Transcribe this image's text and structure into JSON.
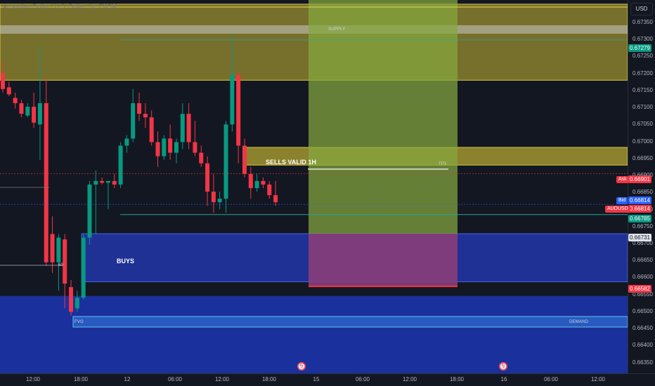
{
  "header": {
    "symbol_title": "Australian Dollar / U.S. Dollar, 1h, FXCM"
  },
  "price_axis": {
    "currency": "USD",
    "ticks": [
      "0.67350",
      "0.67300",
      "0.67250",
      "0.67200",
      "0.67150",
      "0.67100",
      "0.67050",
      "0.67000",
      "0.66950",
      "0.66900",
      "0.66850",
      "0.66800",
      "0.66750",
      "0.66700",
      "0.66650",
      "0.66600",
      "0.66550",
      "0.66500",
      "0.66450",
      "0.66400",
      "0.66350"
    ],
    "tags": {
      "supply_level": "0.67279",
      "ask_label": "Ask",
      "ask_value": "0.66901",
      "bid_label": "Bid",
      "bid_value": "0.66814",
      "symbol_label": "AUDUSD",
      "symbol_value": "0.66814",
      "tp_level": "0.66785",
      "buys_top": "0.66731",
      "stop_level": "0.66582"
    }
  },
  "time_axis": {
    "ticks": [
      "12:00",
      "18:00",
      "12",
      "06:00",
      "12:00",
      "18:00",
      "15",
      "06:00",
      "12:00",
      "18:00",
      "16",
      "06:00",
      "12:00"
    ]
  },
  "annotations": {
    "supply_zone": "SUPPLY",
    "sells_valid": "SELLS VALID 1H",
    "tp1": "TP1",
    "buys": "BUYS",
    "fvg": "FVG",
    "demand": "DEMAND",
    "sixty": "60"
  },
  "colors": {
    "bull": "#089981",
    "bear": "#f23645",
    "supply": "#b5a632",
    "buys_zone": "#2236a6",
    "demand_zone": "#1b33a8",
    "target_box": "#85a83e",
    "stop_box": "#8a3e7a",
    "ask": "#f23645",
    "bid": "#2962ff"
  },
  "event_icons": [
    "lightning-icon",
    "lightning-icon"
  ],
  "chart_data": {
    "type": "candlestick",
    "symbol": "AUDUSD",
    "timeframe": "1h",
    "ylim": [
      0.6634,
      0.6738
    ],
    "levels": {
      "ask": 0.66901,
      "bid": 0.66814,
      "tp1": 0.66785,
      "supply_line": 0.67279,
      "buys_top": 0.66731,
      "stop": 0.66582
    },
    "zones": [
      {
        "name": "supply",
        "from": 0.67165,
        "to": 0.6738
      },
      {
        "name": "sells_valid_1h",
        "from": 0.66925,
        "to": 0.66975
      },
      {
        "name": "buys",
        "from": 0.66595,
        "to": 0.66731
      },
      {
        "name": "demand",
        "from": 0.6635,
        "to": 0.66555
      }
    ],
    "candles": [
      {
        "o": 0.67185,
        "h": 0.67215,
        "l": 0.6713,
        "c": 0.6714
      },
      {
        "o": 0.67145,
        "h": 0.6716,
        "l": 0.6712,
        "c": 0.67125
      },
      {
        "o": 0.67115,
        "h": 0.6713,
        "l": 0.67085,
        "c": 0.671
      },
      {
        "o": 0.671,
        "h": 0.6711,
        "l": 0.6706,
        "c": 0.6707
      },
      {
        "o": 0.67065,
        "h": 0.671,
        "l": 0.6706,
        "c": 0.6709
      },
      {
        "o": 0.6709,
        "h": 0.6713,
        "l": 0.6703,
        "c": 0.67045
      },
      {
        "o": 0.6704,
        "h": 0.6726,
        "l": 0.6694,
        "c": 0.671
      },
      {
        "o": 0.671,
        "h": 0.6717,
        "l": 0.6664,
        "c": 0.6665
      },
      {
        "o": 0.6673,
        "h": 0.6678,
        "l": 0.6662,
        "c": 0.6665
      },
      {
        "o": 0.6665,
        "h": 0.6673,
        "l": 0.6657,
        "c": 0.6672
      },
      {
        "o": 0.66715,
        "h": 0.6673,
        "l": 0.6652,
        "c": 0.6659
      },
      {
        "o": 0.6658,
        "h": 0.666,
        "l": 0.665,
        "c": 0.6651
      },
      {
        "o": 0.6652,
        "h": 0.6657,
        "l": 0.6651,
        "c": 0.6655
      },
      {
        "o": 0.6655,
        "h": 0.6673,
        "l": 0.66545,
        "c": 0.6672
      },
      {
        "o": 0.6672,
        "h": 0.6688,
        "l": 0.667,
        "c": 0.6687
      },
      {
        "o": 0.6687,
        "h": 0.6691,
        "l": 0.6673,
        "c": 0.6688
      },
      {
        "o": 0.6688,
        "h": 0.6689,
        "l": 0.6687,
        "c": 0.66875
      },
      {
        "o": 0.66875,
        "h": 0.6688,
        "l": 0.668,
        "c": 0.6688
      },
      {
        "o": 0.6688,
        "h": 0.669,
        "l": 0.6686,
        "c": 0.6687
      },
      {
        "o": 0.6687,
        "h": 0.6699,
        "l": 0.6686,
        "c": 0.6698
      },
      {
        "o": 0.6698,
        "h": 0.6701,
        "l": 0.6696,
        "c": 0.67
      },
      {
        "o": 0.67,
        "h": 0.6714,
        "l": 0.6699,
        "c": 0.671
      },
      {
        "o": 0.671,
        "h": 0.6713,
        "l": 0.6705,
        "c": 0.6707
      },
      {
        "o": 0.6707,
        "h": 0.671,
        "l": 0.6703,
        "c": 0.6706
      },
      {
        "o": 0.6706,
        "h": 0.6708,
        "l": 0.6698,
        "c": 0.6699
      },
      {
        "o": 0.6699,
        "h": 0.6702,
        "l": 0.6692,
        "c": 0.6695
      },
      {
        "o": 0.6695,
        "h": 0.6701,
        "l": 0.6694,
        "c": 0.67
      },
      {
        "o": 0.67,
        "h": 0.6704,
        "l": 0.6694,
        "c": 0.6696
      },
      {
        "o": 0.6696,
        "h": 0.67,
        "l": 0.6693,
        "c": 0.6699
      },
      {
        "o": 0.6699,
        "h": 0.671,
        "l": 0.6697,
        "c": 0.6707
      },
      {
        "o": 0.6707,
        "h": 0.671,
        "l": 0.6697,
        "c": 0.6699
      },
      {
        "o": 0.6699,
        "h": 0.6705,
        "l": 0.6695,
        "c": 0.6696
      },
      {
        "o": 0.6696,
        "h": 0.6698,
        "l": 0.6692,
        "c": 0.6693
      },
      {
        "o": 0.6693,
        "h": 0.6695,
        "l": 0.6681,
        "c": 0.6685
      },
      {
        "o": 0.6685,
        "h": 0.669,
        "l": 0.6679,
        "c": 0.6682
      },
      {
        "o": 0.6682,
        "h": 0.6685,
        "l": 0.668,
        "c": 0.6683
      },
      {
        "o": 0.6683,
        "h": 0.6705,
        "l": 0.6679,
        "c": 0.6704
      },
      {
        "o": 0.6704,
        "h": 0.6729,
        "l": 0.6702,
        "c": 0.6718
      },
      {
        "o": 0.6718,
        "h": 0.6719,
        "l": 0.6693,
        "c": 0.6698
      },
      {
        "o": 0.6698,
        "h": 0.67,
        "l": 0.6689,
        "c": 0.669
      },
      {
        "o": 0.669,
        "h": 0.6692,
        "l": 0.6683,
        "c": 0.6686
      },
      {
        "o": 0.6686,
        "h": 0.669,
        "l": 0.6685,
        "c": 0.6688
      },
      {
        "o": 0.6688,
        "h": 0.6689,
        "l": 0.6686,
        "c": 0.6687
      },
      {
        "o": 0.6687,
        "h": 0.6688,
        "l": 0.6683,
        "c": 0.6684
      },
      {
        "o": 0.6684,
        "h": 0.6688,
        "l": 0.6681,
        "c": 0.6682
      }
    ]
  }
}
